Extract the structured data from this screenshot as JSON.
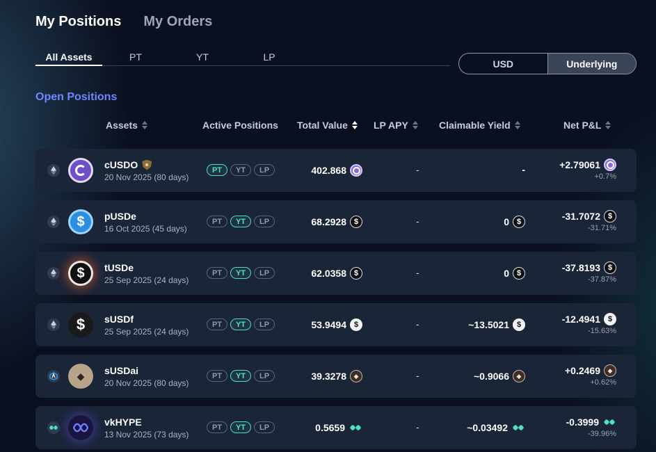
{
  "top_tabs": [
    {
      "label": "My Positions",
      "active": true
    },
    {
      "label": "My Orders",
      "active": false
    }
  ],
  "filter_tabs": [
    {
      "label": "All Assets",
      "active": true
    },
    {
      "label": "PT",
      "active": false
    },
    {
      "label": "YT",
      "active": false
    },
    {
      "label": "LP",
      "active": false
    }
  ],
  "unit_toggle": [
    {
      "label": "USD",
      "active": false
    },
    {
      "label": "Underlying",
      "active": true
    }
  ],
  "section_title": "Open Positions",
  "columns": {
    "assets": "Assets",
    "active_positions": "Active Positions",
    "total_value": "Total Value",
    "lp_apy": "LP APY",
    "claimable_yield": "Claimable Yield",
    "net_pnl": "Net P&L"
  },
  "pill_labels": [
    "PT",
    "YT",
    "LP"
  ],
  "rows": [
    {
      "name": "cUSDO",
      "date": "20 Nov 2025 (80 days)",
      "chain": "ethereum-icon",
      "icon": "cusdo-icon",
      "badge": "shield-icon",
      "pills": [
        true,
        false,
        false
      ],
      "total": "402.868",
      "lp_apy": "-",
      "claimable": "-",
      "pnl": "+2.79061",
      "pnl_pct": "+0.7%",
      "token": "cusdo",
      "colors": {
        "icon_bg": "#6d4fc8"
      }
    },
    {
      "name": "pUSDe",
      "date": "16 Oct 2025 (45 days)",
      "chain": "ethereum-icon",
      "icon": "pusde-icon",
      "pills": [
        false,
        true,
        false
      ],
      "total": "68.2928",
      "lp_apy": "-",
      "claimable": "0",
      "pnl": "-31.7072",
      "pnl_pct": "-31.71%",
      "token": "dark",
      "colors": {
        "icon_bg": "#2a8fe0"
      }
    },
    {
      "name": "tUSDe",
      "date": "25 Sep 2025 (24 days)",
      "chain": "ethereum-icon",
      "icon": "tusde-icon",
      "pills": [
        false,
        true,
        false
      ],
      "total": "62.0358",
      "lp_apy": "-",
      "claimable": "0",
      "pnl": "-37.8193",
      "pnl_pct": "-37.87%",
      "token": "dark",
      "colors": {
        "icon_bg": "#111111"
      }
    },
    {
      "name": "sUSDf",
      "date": "25 Sep 2025 (24 days)",
      "chain": "ethereum-icon",
      "icon": "susdf-icon",
      "pills": [
        false,
        true,
        false
      ],
      "total": "53.9494",
      "lp_apy": "-",
      "claimable": "~13.5021",
      "pnl": "-12.4941",
      "pnl_pct": "-15.63%",
      "token": "white",
      "colors": {
        "icon_bg": "#1a1a1a"
      }
    },
    {
      "name": "sUSDai",
      "date": "20 Nov 2025 (80 days)",
      "chain": "arbitrum-icon",
      "icon": "susdai-icon",
      "pills": [
        false,
        true,
        false
      ],
      "total": "39.3278",
      "lp_apy": "-",
      "claimable": "~0.9066",
      "pnl": "+0.2469",
      "pnl_pct": "+0.62%",
      "token": "usdai",
      "colors": {
        "icon_bg": "#b8a38b"
      }
    },
    {
      "name": "vkHYPE",
      "date": "13 Nov 2025 (73 days)",
      "chain": "hyperliquid-icon",
      "icon": "vkhype-icon",
      "pills": [
        false,
        true,
        false
      ],
      "total": "0.5659",
      "lp_apy": "-",
      "claimable": "~0.03492",
      "pnl": "-0.3999",
      "pnl_pct": "-39.96%",
      "token": "hype",
      "colors": {
        "icon_bg": "#1a1440"
      }
    }
  ],
  "colors": {
    "accent": "#6f86ff",
    "pill_active": "#4fe0c0",
    "row_bg": "#1b2538"
  }
}
